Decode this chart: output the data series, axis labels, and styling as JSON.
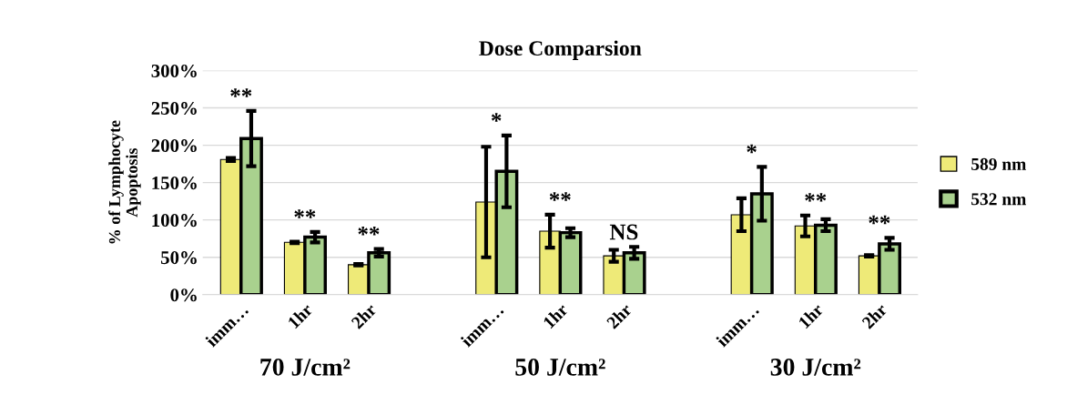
{
  "chart_data": {
    "type": "bar",
    "title": "Dose Comparsion",
    "ylabel": "% of Lymphocyte\nApoptosis",
    "categories": [
      "imm…",
      "1hr",
      "2hr",
      null,
      "imm…",
      "1hr",
      "2hr",
      null,
      "imm…",
      "1hr",
      "2hr"
    ],
    "series": [
      {
        "name": "589 nm",
        "color": "#eeea78",
        "values": [
          181,
          70,
          40,
          null,
          124,
          85,
          52,
          null,
          107,
          92,
          52
        ],
        "errors": [
          2,
          1,
          1,
          null,
          74,
          22,
          8,
          null,
          22,
          14,
          1
        ]
      },
      {
        "name": "532 nm",
        "color": "#a9d18e",
        "values": [
          209,
          77,
          56,
          null,
          165,
          83,
          56,
          null,
          135,
          93,
          68
        ],
        "errors": [
          37,
          7,
          5,
          null,
          48,
          6,
          8,
          null,
          36,
          8,
          8
        ]
      }
    ],
    "ylim": [
      0,
      300
    ],
    "yticks": [
      {
        "value": 0,
        "label": "0%"
      },
      {
        "value": 50,
        "label": "50%"
      },
      {
        "value": 100,
        "label": "100%"
      },
      {
        "value": 150,
        "label": "150%"
      },
      {
        "value": 200,
        "label": "200%"
      },
      {
        "value": 250,
        "label": "250%"
      },
      {
        "value": 300,
        "label": "300%"
      }
    ],
    "grid": "y",
    "legend": "right",
    "annotations": [
      "**",
      "**",
      "**",
      "*",
      "**",
      "NS",
      "*",
      "**",
      "**",
      "70 J/cm²",
      "50 J/cm²",
      "30 J/cm²"
    ]
  }
}
